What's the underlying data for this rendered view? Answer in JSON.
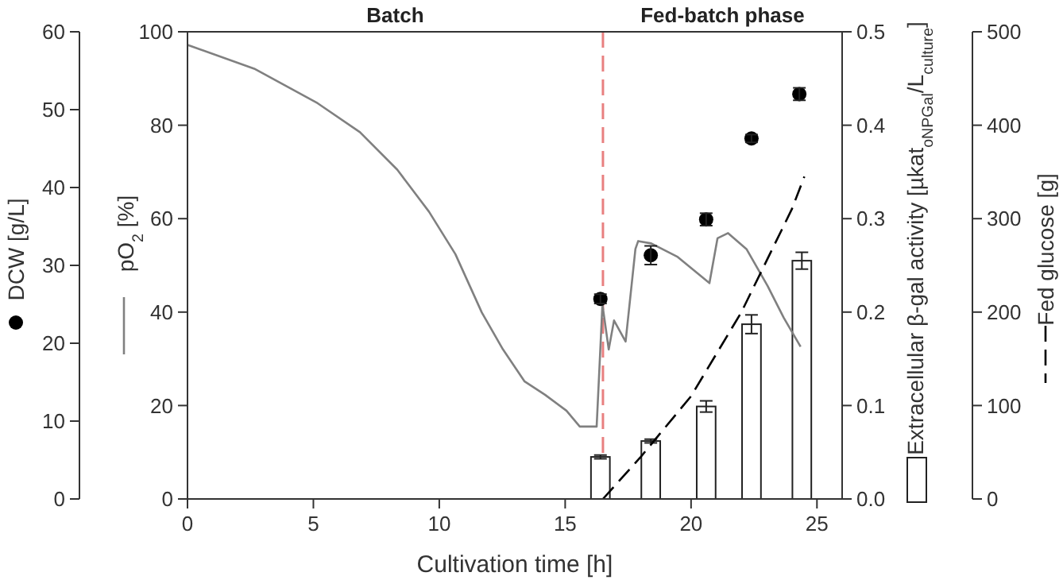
{
  "chart_data": [
    {
      "type": "line",
      "xlabel": "Cultivation time [h]",
      "ylabel": "pO$_{2}$ [%]",
      "y2label": "Extracellular β-gal activity [µkat$_{oNPGal}$/L$_{culture}$]",
      "y3label": "DCW [g/L]",
      "xlim": [
        0,
        26
      ],
      "xticks": [
        0,
        5,
        10,
        15,
        20,
        25
      ],
      "ylim": [
        0,
        100
      ],
      "yticks": [
        0,
        20,
        40,
        60,
        80,
        100
      ],
      "y2lim": [
        0,
        0.5
      ],
      "y2ticks": [
        {
          "value": 0,
          "label": "0.0"
        },
        0.1,
        0.2,
        0.3,
        0.4,
        0.5
      ],
      "y3lim": [
        0,
        60
      ],
      "y3ticks": [
        0,
        10,
        20,
        30,
        40,
        50,
        60
      ],
      "annotations": [
        "Batch",
        "Fed-batch phase"
      ],
      "ref_lines": [
        {
          "axis": "x",
          "value": 16.5,
          "color": "#e88080",
          "line_style": "dashed"
        }
      ],
      "series": [
        {
          "axis": "y",
          "color": "#808080",
          "line_style": "solid",
          "x": [
            0,
            2.65,
            5.17,
            6.85,
            8.33,
            9.59,
            10.64,
            11.69,
            12.53,
            13.38,
            14.2,
            15.05,
            15.58,
            16.25,
            16.48,
            16.73,
            16.94,
            17.4,
            17.79,
            17.9,
            18.42,
            19.47,
            20.73,
            21.05,
            21.47,
            22.2,
            23.04,
            23.68,
            24.35
          ],
          "values": [
            97.2,
            92.1,
            84.7,
            78.5,
            70.5,
            61.5,
            52.4,
            39.9,
            32,
            25.2,
            22.3,
            18.9,
            15.5,
            15.5,
            41.6,
            32,
            38.2,
            33.7,
            53.5,
            55.2,
            54.7,
            51.8,
            46.2,
            55.8,
            56.9,
            53.5,
            45.6,
            38.8,
            32.6
          ]
        },
        {
          "type": "bar",
          "axis": "y2",
          "color": "#ffffff",
          "x": [
            16.4,
            18.4,
            20.6,
            22.4,
            24.4
          ],
          "values": [
            0.045,
            0.062,
            0.099,
            0.187,
            0.255
          ],
          "errors": [
            0.002,
            0.002,
            0.006,
            0.01,
            0.009
          ]
        },
        {
          "type": "scatter",
          "axis": "y3",
          "color": "#000000",
          "marker": "circle",
          "x": [
            16.4,
            18.4,
            20.6,
            22.4,
            24.3
          ],
          "values": [
            25.7,
            31.3,
            35.9,
            46.3,
            52.0
          ],
          "errors": [
            0.6,
            1.2,
            0.8,
            0.5,
            0.8
          ]
        }
      ]
    },
    {
      "type": "line",
      "ylabel": "Fed glucose [g]",
      "xlim": [
        0,
        26
      ],
      "ylim": [
        0,
        500
      ],
      "yticks": [
        0,
        100,
        200,
        300,
        400,
        500
      ],
      "tick_labels": "y",
      "series": [
        {
          "color": "#000000",
          "line_style": "dashed",
          "x": [
            16.5,
            18,
            20,
            22,
            24,
            24.5
          ],
          "values": [
            0,
            45,
            110,
            200,
            310,
            345
          ]
        }
      ]
    }
  ]
}
